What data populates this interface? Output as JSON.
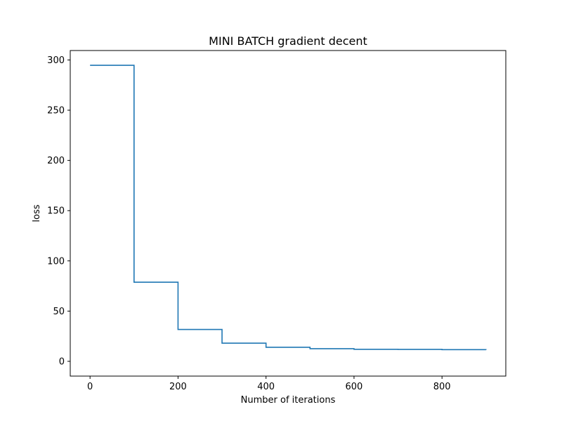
{
  "chart_data": {
    "type": "line",
    "title": "MINI BATCH gradient decent",
    "xlabel": "Number of iterations",
    "ylabel": "loss",
    "xlim": [
      -45,
      945
    ],
    "ylim": [
      -14.7,
      309.4
    ],
    "xticks": [
      0,
      200,
      400,
      600,
      800
    ],
    "yticks": [
      0,
      50,
      100,
      150,
      200,
      250,
      300
    ],
    "grid": false,
    "series": [
      {
        "color": "#1f77b4",
        "step": "post",
        "x": [
          0,
          100,
          200,
          300,
          400,
          500,
          600,
          700,
          800,
          900
        ],
        "y": [
          294.7,
          78.8,
          31.7,
          18.1,
          14.0,
          12.6,
          12.0,
          11.9,
          11.6,
          11.4
        ]
      }
    ]
  }
}
